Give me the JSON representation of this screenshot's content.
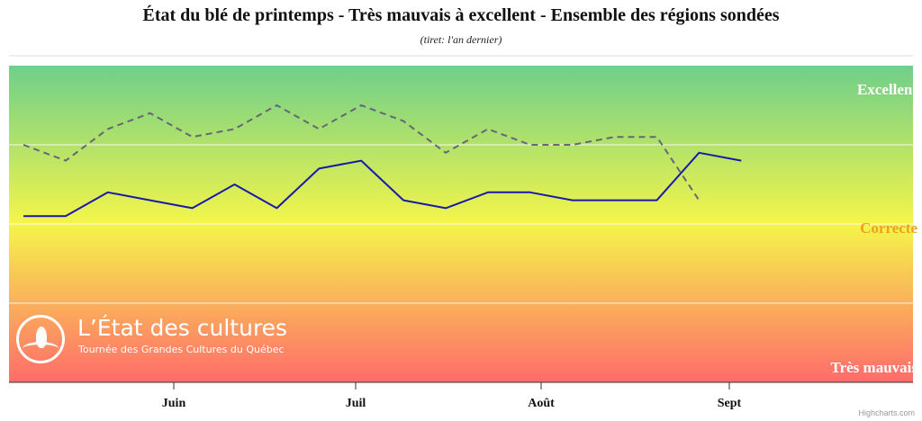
{
  "chart_data": {
    "type": "line",
    "title": "État du blé de printemps - Très mauvais à excellent - Ensemble des régions sondées",
    "subtitle": "(tiret: l'an dernier)",
    "x_labels": [
      "Juin",
      "Juil",
      "Août",
      "Sept"
    ],
    "y_band_labels": [
      "Excellent",
      "Correcte",
      "Très mauvais"
    ],
    "ylim": [
      0,
      4
    ],
    "grid": true,
    "series": [
      {
        "style": "solid",
        "color": "#1a1aaa",
        "values": [
          2.1,
          2.1,
          2.4,
          2.3,
          2.2,
          2.5,
          2.2,
          2.7,
          2.8,
          2.3,
          2.2,
          2.4,
          2.4,
          2.3,
          2.3,
          2.3,
          2.9,
          2.8
        ]
      },
      {
        "style": "dashed",
        "color": "#666677",
        "values": [
          3.0,
          2.8,
          3.2,
          3.4,
          3.1,
          3.2,
          3.5,
          3.2,
          3.5,
          3.3,
          2.9,
          3.2,
          3.0,
          3.0,
          3.1,
          3.1,
          2.3
        ]
      }
    ]
  },
  "colors": {
    "excellent_band": "#6fcf8a",
    "fair_band": "#f5f54a",
    "poor_band": "#ff6b6b",
    "band_label_light": "#ffffff",
    "band_label_fair": "#f0a020"
  },
  "logo": {
    "name": "L’État des cultures",
    "tagline": "Tournée des Grandes Cultures du Québec"
  },
  "credits": "Highcharts.com"
}
